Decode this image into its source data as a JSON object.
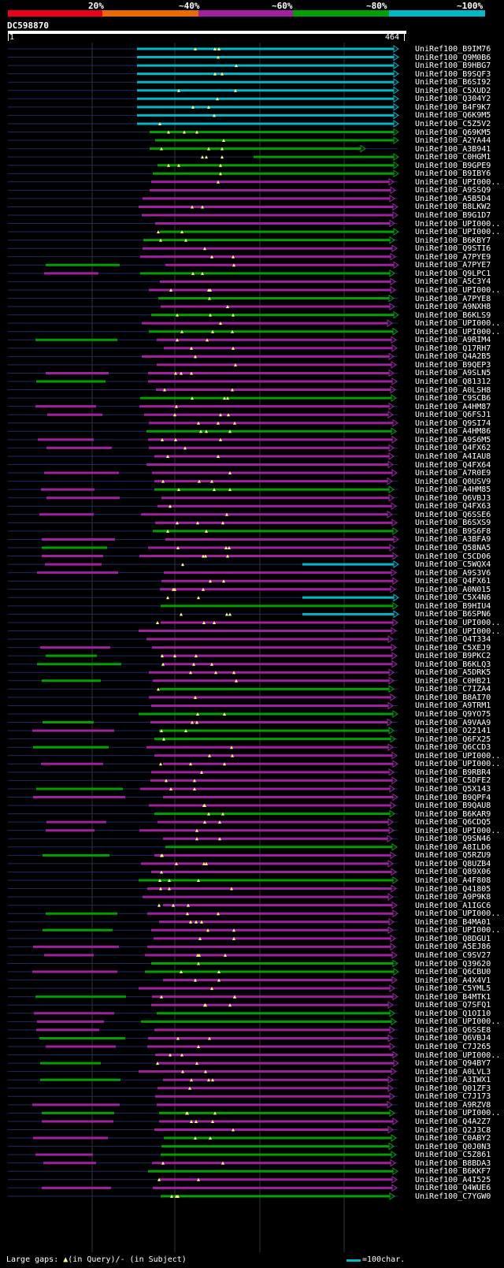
{
  "legend": {
    "labels": [
      "20%",
      "~40%",
      "~60%",
      "~80%",
      "~100%"
    ],
    "colors": [
      "#e8001c",
      "#e86a00",
      "#a020a0",
      "#00a000",
      "#00b8c8"
    ]
  },
  "query": {
    "id": "DC598870",
    "start": "1",
    "end": "464"
  },
  "hits": [
    "UniRef100_B9IM76",
    "UniRef100_Q9M0B6",
    "UniRef100_B9HBG7",
    "UniRef100_B9SQF3",
    "UniRef100_B6SI92",
    "UniRef100_C5XUD2",
    "UniRef100_Q304Y2",
    "UniRef100_B4F9K7",
    "UniRef100_Q6K9M5",
    "UniRef100_C5Z5V2",
    "UniRef100_Q69KM5",
    "UniRef100_A2YA44",
    "UniRef100_A3B941",
    "UniRef100_C0HGM1",
    "UniRef100_B9GPE9",
    "UniRef100_B9IBY6",
    "UniRef100_UPI000..",
    "UniRef100_A9SSQ9",
    "UniRef100_A5B5D4",
    "UniRef100_B8LKW2",
    "UniRef100_B9G1D7",
    "UniRef100_UPI000..",
    "UniRef100_UPI000..",
    "UniRef100_B6KBY7",
    "UniRef100_Q9STI6",
    "UniRef100_A7PYE9",
    "UniRef100_A7PYE7",
    "UniRef100_Q9LPC1",
    "UniRef100_A5C3Y4",
    "UniRef100_UPI000..",
    "UniRef100_A7PYE8",
    "UniRef100_A9NXH8",
    "UniRef100_B6KLS9",
    "UniRef100_UPI000..",
    "UniRef100_UPI000..",
    "UniRef100_A9RIM4",
    "UniRef100_Q17RH7",
    "UniRef100_Q4A2B5",
    "UniRef100_B9QEP3",
    "UniRef100_A9SLN5",
    "UniRef100_Q81312",
    "UniRef100_A0LSH8",
    "UniRef100_C9SCB6",
    "UniRef100_A4HM87",
    "UniRef100_Q6FSJ1",
    "UniRef100_Q9SI74",
    "UniRef100_A4HM86",
    "UniRef100_A9S6M5",
    "UniRef100_Q4FX62",
    "UniRef100_A4IAU8",
    "UniRef100_Q4FX64",
    "UniRef100_A7R0E9",
    "UniRef100_Q0USV9",
    "UniRef100_A4HM85",
    "UniRef100_Q6VBJ3",
    "UniRef100_Q4FX63",
    "UniRef100_Q6SSE6",
    "UniRef100_B6SXS9",
    "UniRef100_B9S6F8",
    "UniRef100_A3BFA9",
    "UniRef100_Q58NA5",
    "UniRef100_C5CD06",
    "UniRef100_C5WQX4",
    "UniRef100_A9S3V6",
    "UniRef100_Q4FX61",
    "UniRef100_A0N015",
    "UniRef100_C5X4N6",
    "UniRef100_B9HIU4",
    "UniRef100_B6SPN6",
    "UniRef100_UPI000..",
    "UniRef100_UPI000..",
    "UniRef100_Q4T334",
    "UniRef100_C5XEJ9",
    "UniRef100_B9PKC2",
    "UniRef100_B6KLQ3",
    "UniRef100_A5DRK5",
    "UniRef100_C0HB21",
    "UniRef100_C7IZA4",
    "UniRef100_B8AI70",
    "UniRef100_A9TRM1",
    "UniRef100_Q9YO75",
    "UniRef100_A9VAA9",
    "UniRef100_O22141",
    "UniRef100_Q6FX25",
    "UniRef100_Q6CCD3",
    "UniRef100_UPI000..",
    "UniRef100_UPI000..",
    "UniRef100_B9RBR4",
    "UniRef100_C5DFE2",
    "UniRef100_Q5X143",
    "UniRef100_B9QPF4",
    "UniRef100_B9QAU8",
    "UniRef100_B6KAR9",
    "UniRef100_Q6CDQ5",
    "UniRef100_UPI000..",
    "UniRef100_Q9SN46",
    "UniRef100_A8ILD6",
    "UniRef100_Q5RZU9",
    "UniRef100_Q8UZB4",
    "UniRef100_Q89X06",
    "UniRef100_A4F808",
    "UniRef100_Q41805",
    "UniRef100_A9P9K8",
    "UniRef100_A1IGC6",
    "UniRef100_UPI000..",
    "UniRef100_B4MA01",
    "UniRef100_UPI000..",
    "UniRef100_Q8DGU1",
    "UniRef100_A5EJ86",
    "UniRef100_C9SV27",
    "UniRef100_Q39620",
    "UniRef100_Q6CBU0",
    "UniRef100_A4X4V1",
    "UniRef100_C5YML5",
    "UniRef100_B4MTK1",
    "UniRef100_Q7SFQ1",
    "UniRef100_Q1OI10",
    "UniRef100_UPI000..",
    "UniRef100_Q6SSE8",
    "UniRef100_Q6VBJ4",
    "UniRef100_C7J265",
    "UniRef100_UPI000..",
    "UniRef100_Q94BY7",
    "UniRef100_A0LVL3",
    "UniRef100_A3IWX1",
    "UniRef100_Q01ZF3",
    "UniRef100_C7J173",
    "UniRef100_A9RZV8",
    "UniRef100_UPI000..",
    "UniRef100_Q4A2Z7",
    "UniRef100_Q2J3C8",
    "UniRef100_C0ABY2",
    "UniRef100_Q0J0N3",
    "UniRef100_C5Z861",
    "UniRef100_B8BDA3",
    "UniRef100_B6KKF7",
    "UniRef100_A4I525",
    "UniRef100_Q4WUE6",
    "UniRef100_C7YGW0"
  ],
  "footer": {
    "gap_note_prefix": "Large gaps: ",
    "gap_note_triangle": "▲",
    "gap_note_suffix": "(in Query)/- (in Subject)",
    "scale_label": "=100char."
  }
}
